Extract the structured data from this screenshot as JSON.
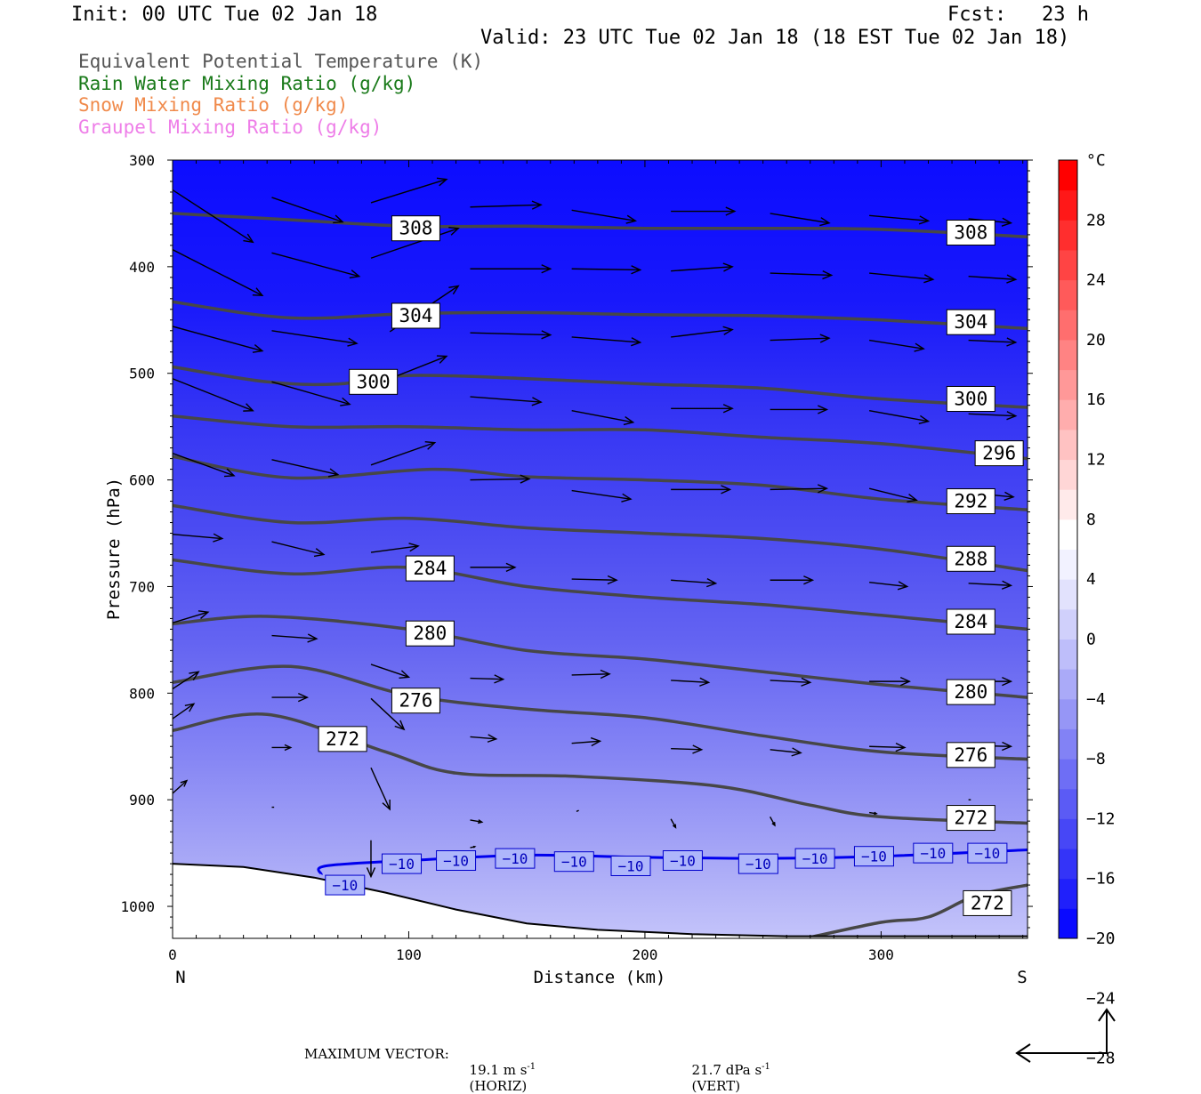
{
  "header": {
    "init": "Init: 00 UTC Tue 02 Jan 18",
    "fcst": "Fcst:   23 h",
    "valid": "Valid: 23 UTC Tue 02 Jan 18 (18 EST Tue 02 Jan 18)"
  },
  "legend": [
    {
      "label": "Equivalent Potential Temperature (K)",
      "color": "#555555"
    },
    {
      "label": "Rain Water Mixing Ratio (g/kg)",
      "color": "#1a7a1a"
    },
    {
      "label": "Snow Mixing Ratio (g/kg)",
      "color": "#f08a4b"
    },
    {
      "label": "Graupel Mixing Ratio (g/kg)",
      "color": "#ee7ee8"
    }
  ],
  "axes": {
    "ylabel": "Pressure (hPa)",
    "xlabel": "Distance (km)",
    "left_end": "N",
    "right_end": "S"
  },
  "footer": {
    "max_vector_label": "MAXIMUM VECTOR:",
    "horiz_value": "19.1 m s",
    "horiz_exp": "-1",
    "horiz_unit": "(HORIZ)",
    "vert_value": "21.7 dPa s",
    "vert_exp": "-1",
    "vert_unit": "(VERT)"
  },
  "chart_data": {
    "type": "cross-section contour",
    "title": "",
    "xlabel": "Distance (km)",
    "ylabel": "Pressure (hPa)",
    "xlim": [
      0,
      362
    ],
    "ylim": [
      1030,
      300
    ],
    "x_ticks": [
      0,
      100,
      200,
      300
    ],
    "y_ticks": [
      300,
      400,
      500,
      600,
      700,
      800,
      900,
      1000
    ],
    "temperature_colorbar": {
      "unit": "°C",
      "tick_labels": [
        "28",
        "24",
        "20",
        "16",
        "12",
        "8",
        "4",
        "0",
        "-4",
        "-8",
        "-12",
        "-16",
        "-20",
        "-24",
        "-28"
      ],
      "colors": [
        "#0a0aff",
        "#2020fb",
        "#3434f8",
        "#4747f6",
        "#5b5bf5",
        "#6e6ef5",
        "#8282f5",
        "#9696f6",
        "#aaaaf8",
        "#bebefa",
        "#d0d0fb",
        "#e2e2fd",
        "#f2f2ff",
        "#ffffff",
        "#ffeaea",
        "#ffd6d6",
        "#ffc2c2",
        "#ffadad",
        "#ff9898",
        "#ff8383",
        "#ff6e6e",
        "#ff5a5a",
        "#ff4444",
        "#ff2e2e",
        "#ff1818",
        "#ff0000"
      ]
    },
    "theta_e_contours": [
      {
        "value": 308,
        "points": [
          [
            0,
            350
          ],
          [
            50,
            356
          ],
          [
            100,
            362
          ],
          [
            150,
            362
          ],
          [
            200,
            364
          ],
          [
            250,
            364
          ],
          [
            300,
            365
          ],
          [
            362,
            372
          ]
        ],
        "labels": [
          [
            103,
            364
          ],
          [
            338,
            368
          ]
        ]
      },
      {
        "value": 304,
        "points": [
          [
            0,
            433
          ],
          [
            50,
            448
          ],
          [
            100,
            444
          ],
          [
            150,
            443
          ],
          [
            200,
            445
          ],
          [
            250,
            446
          ],
          [
            300,
            450
          ],
          [
            362,
            458
          ]
        ],
        "labels": [
          [
            103,
            446
          ],
          [
            338,
            452
          ]
        ]
      },
      {
        "value": 300,
        "points": [
          [
            0,
            494
          ],
          [
            40,
            508
          ],
          [
            70,
            510
          ],
          [
            100,
            502
          ],
          [
            150,
            505
          ],
          [
            200,
            510
          ],
          [
            250,
            514
          ],
          [
            300,
            524
          ],
          [
            362,
            532
          ]
        ],
        "labels": [
          [
            85,
            508
          ],
          [
            338,
            524
          ]
        ]
      },
      {
        "value": 296,
        "points": [
          [
            0,
            540
          ],
          [
            50,
            550
          ],
          [
            100,
            550
          ],
          [
            150,
            553
          ],
          [
            200,
            553
          ],
          [
            250,
            560
          ],
          [
            300,
            566
          ],
          [
            362,
            580
          ]
        ],
        "labels": [
          [
            350,
            575
          ]
        ]
      },
      {
        "value": 292,
        "points": [
          [
            0,
            578
          ],
          [
            50,
            598
          ],
          [
            110,
            590
          ],
          [
            150,
            597
          ],
          [
            200,
            600
          ],
          [
            250,
            605
          ],
          [
            300,
            618
          ],
          [
            362,
            628
          ]
        ],
        "labels": [
          [
            338,
            620
          ]
        ]
      },
      {
        "value": 288,
        "points": [
          [
            0,
            624
          ],
          [
            50,
            640
          ],
          [
            100,
            636
          ],
          [
            150,
            645
          ],
          [
            200,
            650
          ],
          [
            250,
            655
          ],
          [
            300,
            665
          ],
          [
            362,
            685
          ]
        ],
        "labels": [
          [
            338,
            674
          ]
        ]
      },
      {
        "value": 284,
        "points": [
          [
            0,
            675
          ],
          [
            50,
            688
          ],
          [
            100,
            682
          ],
          [
            150,
            700
          ],
          [
            200,
            710
          ],
          [
            250,
            717
          ],
          [
            300,
            727
          ],
          [
            362,
            740
          ]
        ],
        "labels": [
          [
            109,
            683
          ],
          [
            338,
            733
          ]
        ]
      },
      {
        "value": 280,
        "points": [
          [
            0,
            735
          ],
          [
            40,
            728
          ],
          [
            100,
            740
          ],
          [
            150,
            760
          ],
          [
            200,
            768
          ],
          [
            250,
            780
          ],
          [
            300,
            792
          ],
          [
            362,
            804
          ]
        ],
        "labels": [
          [
            109,
            744
          ],
          [
            338,
            799
          ]
        ]
      },
      {
        "value": 276,
        "points": [
          [
            0,
            790
          ],
          [
            50,
            775
          ],
          [
            100,
            802
          ],
          [
            150,
            815
          ],
          [
            200,
            823
          ],
          [
            250,
            840
          ],
          [
            300,
            855
          ],
          [
            362,
            862
          ]
        ],
        "labels": [
          [
            103,
            807
          ],
          [
            338,
            858
          ]
        ]
      },
      {
        "value": 272,
        "points": [
          [
            0,
            835
          ],
          [
            40,
            820
          ],
          [
            90,
            855
          ],
          [
            120,
            875
          ],
          [
            170,
            878
          ],
          [
            230,
            887
          ],
          [
            270,
            905
          ],
          [
            300,
            916
          ],
          [
            362,
            922
          ]
        ],
        "labels": [
          [
            72,
            843
          ],
          [
            338,
            917
          ]
        ]
      },
      {
        "value": 272,
        "points": [
          [
            268,
            1030
          ],
          [
            300,
            1015
          ],
          [
            320,
            1010
          ],
          [
            340,
            990
          ],
          [
            362,
            980
          ]
        ],
        "labels": [
          [
            345,
            997
          ]
        ]
      }
    ],
    "isotherm_minus10": {
      "value": -10,
      "points": [
        [
          63,
          970
        ],
        [
          65,
          962
        ],
        [
          100,
          957
        ],
        [
          150,
          952
        ],
        [
          200,
          954
        ],
        [
          250,
          955
        ],
        [
          300,
          953
        ],
        [
          362,
          947
        ]
      ],
      "labels": [
        [
          73,
          980
        ],
        [
          97,
          960
        ],
        [
          120,
          957
        ],
        [
          145,
          955
        ],
        [
          170,
          958
        ],
        [
          194,
          962
        ],
        [
          216,
          957
        ],
        [
          248,
          960
        ],
        [
          272,
          955
        ],
        [
          297,
          953
        ],
        [
          322,
          950
        ],
        [
          345,
          950
        ]
      ]
    },
    "terrain": [
      [
        0,
        960
      ],
      [
        30,
        963
      ],
      [
        60,
        973
      ],
      [
        90,
        987
      ],
      [
        120,
        1003
      ],
      [
        150,
        1016
      ],
      [
        180,
        1022
      ],
      [
        220,
        1026
      ],
      [
        260,
        1028
      ],
      [
        300,
        1028
      ],
      [
        362,
        1028
      ]
    ],
    "wind_vectors": [
      [
        0,
        328,
        34,
        377
      ],
      [
        42,
        335,
        72,
        358
      ],
      [
        84,
        340,
        116,
        318
      ],
      [
        126,
        344,
        156,
        342
      ],
      [
        169,
        347,
        196,
        357
      ],
      [
        211,
        348,
        238,
        348
      ],
      [
        253,
        350,
        278,
        359
      ],
      [
        295,
        352,
        320,
        357
      ],
      [
        337,
        355,
        355,
        359
      ],
      [
        0,
        384,
        38,
        427
      ],
      [
        42,
        387,
        79,
        409
      ],
      [
        84,
        392,
        121,
        364
      ],
      [
        126,
        402,
        160,
        402
      ],
      [
        169,
        402,
        198,
        403
      ],
      [
        211,
        404,
        237,
        400
      ],
      [
        253,
        406,
        279,
        408
      ],
      [
        295,
        406,
        322,
        412
      ],
      [
        337,
        409,
        357,
        412
      ],
      [
        0,
        456,
        38,
        479
      ],
      [
        42,
        460,
        78,
        472
      ],
      [
        92,
        461,
        121,
        418
      ],
      [
        126,
        462,
        160,
        464
      ],
      [
        169,
        466,
        198,
        471
      ],
      [
        211,
        466,
        237,
        459
      ],
      [
        253,
        469,
        278,
        467
      ],
      [
        295,
        469,
        318,
        477
      ],
      [
        337,
        469,
        357,
        471
      ],
      [
        0,
        505,
        34,
        535
      ],
      [
        42,
        508,
        75,
        529
      ],
      [
        84,
        512,
        116,
        484
      ],
      [
        126,
        522,
        156,
        527
      ],
      [
        169,
        535,
        195,
        546
      ],
      [
        211,
        533,
        237,
        533
      ],
      [
        253,
        534,
        277,
        534
      ],
      [
        295,
        535,
        320,
        545
      ],
      [
        337,
        538,
        357,
        540
      ],
      [
        0,
        575,
        26,
        596
      ],
      [
        42,
        581,
        70,
        595
      ],
      [
        84,
        586,
        111,
        565
      ],
      [
        126,
        600,
        151,
        599
      ],
      [
        169,
        610,
        194,
        618
      ],
      [
        211,
        609,
        236,
        609
      ],
      [
        253,
        609,
        277,
        608
      ],
      [
        295,
        608,
        315,
        619
      ],
      [
        337,
        612,
        356,
        616
      ],
      [
        0,
        651,
        21,
        655
      ],
      [
        42,
        658,
        64,
        670
      ],
      [
        84,
        668,
        104,
        662
      ],
      [
        126,
        682,
        145,
        682
      ],
      [
        169,
        693,
        188,
        694
      ],
      [
        211,
        694,
        230,
        697
      ],
      [
        253,
        694,
        271,
        694
      ],
      [
        295,
        696,
        311,
        700
      ],
      [
        337,
        697,
        355,
        699
      ],
      [
        0,
        734,
        15,
        724
      ],
      [
        42,
        746,
        61,
        749
      ],
      [
        84,
        773,
        100,
        785
      ],
      [
        126,
        786,
        140,
        787
      ],
      [
        169,
        783,
        185,
        782
      ],
      [
        211,
        788,
        227,
        790
      ],
      [
        253,
        788,
        270,
        790
      ],
      [
        295,
        789,
        312,
        789
      ],
      [
        337,
        789,
        355,
        789
      ],
      [
        0,
        796,
        11,
        780
      ],
      [
        42,
        804,
        57,
        804
      ],
      [
        84,
        805,
        98,
        834
      ],
      [
        126,
        841,
        137,
        843
      ],
      [
        169,
        847,
        181,
        845
      ],
      [
        211,
        852,
        224,
        853
      ],
      [
        253,
        853,
        266,
        856
      ],
      [
        295,
        850,
        310,
        851
      ],
      [
        337,
        849,
        355,
        850
      ],
      [
        0,
        824,
        9,
        810
      ],
      [
        42,
        851,
        50,
        851
      ],
      [
        84,
        870,
        92,
        909
      ],
      [
        126,
        919,
        131,
        921
      ],
      [
        171,
        911,
        172,
        910
      ],
      [
        211,
        918,
        213,
        926
      ],
      [
        253,
        916,
        255,
        924
      ],
      [
        295,
        912,
        298,
        913
      ],
      [
        337,
        900,
        338,
        900
      ],
      [
        0,
        894,
        6,
        882
      ],
      [
        42,
        907,
        43,
        907
      ],
      [
        84,
        938,
        84,
        972
      ],
      [
        126,
        945,
        128,
        944
      ]
    ]
  }
}
